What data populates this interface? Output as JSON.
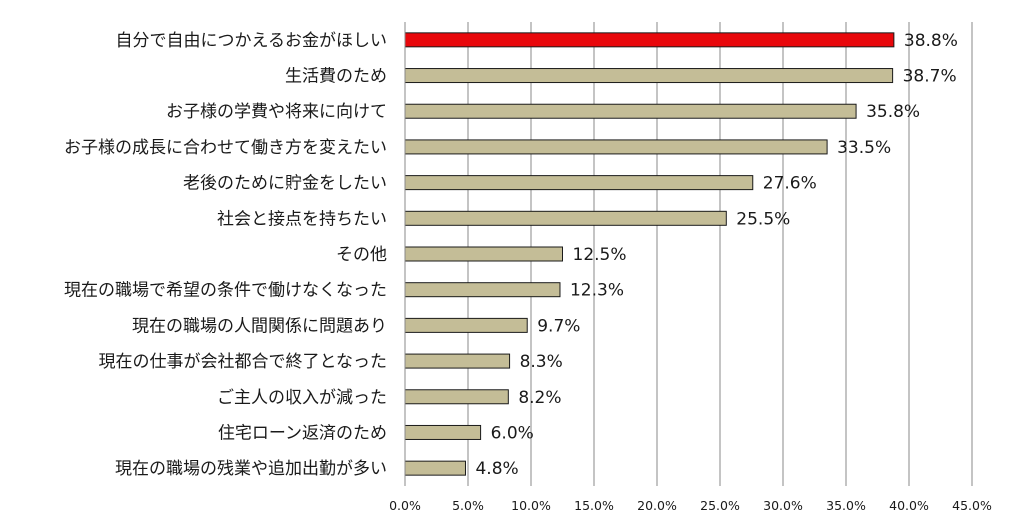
{
  "chart_data": {
    "type": "bar",
    "orientation": "horizontal",
    "categories": [
      "自分で自由につかえるお金がほしい",
      "生活費のため",
      "お子様の学費や将来に向けて",
      "お子様の成長に合わせて働き方を変えたい",
      "老後のために貯金をしたい",
      "社会と接点を持ちたい",
      "その他",
      "現在の職場で希望の条件で働けなくなった",
      "現在の職場の人間関係に問題あり",
      "現在の仕事が会社都合で終了となった",
      "ご主人の収入が減った",
      "住宅ローン返済のため",
      "現在の職場の残業や追加出勤が多い"
    ],
    "values": [
      38.8,
      38.7,
      35.8,
      33.5,
      27.6,
      25.5,
      12.5,
      12.3,
      9.7,
      8.3,
      8.2,
      6.0,
      4.8
    ],
    "value_labels": [
      "38.8%",
      "38.7%",
      "35.8%",
      "33.5%",
      "27.6%",
      "25.5%",
      "12.5%",
      "12.3%",
      "9.7%",
      "8.3%",
      "8.2%",
      "6.0%",
      "4.8%"
    ],
    "xlim": [
      0,
      45
    ],
    "x_ticks": [
      0,
      5,
      10,
      15,
      20,
      25,
      30,
      35,
      40,
      45
    ],
    "x_tick_labels": [
      "0.0%",
      "5.0%",
      "10.0%",
      "15.0%",
      "20.0%",
      "25.0%",
      "30.0%",
      "35.0%",
      "40.0%",
      "45.0%"
    ],
    "grid": "vertical",
    "colors": {
      "highlight": "#e8070b",
      "bar": "#c4bd97",
      "bar_border": "#1a1a1a",
      "grid": "#888888"
    },
    "highlight_index": 0
  }
}
